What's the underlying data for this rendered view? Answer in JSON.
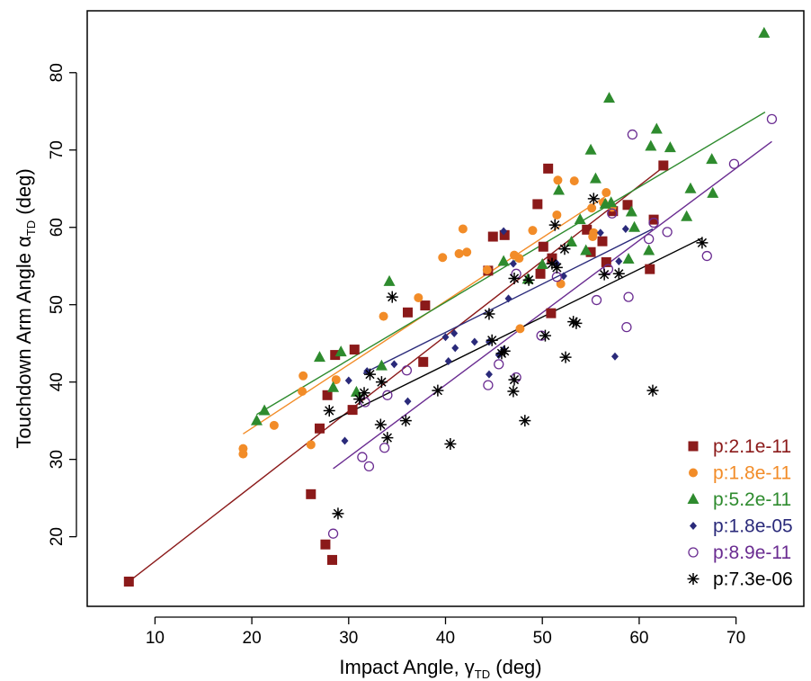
{
  "chart_data": {
    "type": "scatter",
    "title": "",
    "xlabel": {
      "main": "Impact Angle, ",
      "symbol": "γ",
      "sub": "TD",
      "unit": " (deg)"
    },
    "ylabel": {
      "main": "Touchdown Arm Angle  ",
      "symbol": "α",
      "sub": "TD",
      "unit": " (deg)"
    },
    "xlim": [
      3,
      77
    ],
    "ylim": [
      11,
      88
    ],
    "x_ticks": [
      10,
      20,
      30,
      40,
      50,
      60,
      70
    ],
    "y_ticks": [
      20,
      30,
      40,
      50,
      60,
      70,
      80
    ],
    "grid": false,
    "legend_position": "bottom-right",
    "series": [
      {
        "name": "p:2.1e-11",
        "color": "#8b1a1a",
        "marker": "square",
        "fit": [
          [
            7.3,
            14.2
          ],
          [
            62.5,
            67.8
          ]
        ],
        "points": [
          [
            7.3,
            14.2
          ],
          [
            26.1,
            25.5
          ],
          [
            27.0,
            34.0
          ],
          [
            27.6,
            19.0
          ],
          [
            27.8,
            38.3
          ],
          [
            28.3,
            17.0
          ],
          [
            28.6,
            43.5
          ],
          [
            30.4,
            36.4
          ],
          [
            30.6,
            44.2
          ],
          [
            36.1,
            49.0
          ],
          [
            37.7,
            42.6
          ],
          [
            37.9,
            49.9
          ],
          [
            44.4,
            54.4
          ],
          [
            44.9,
            58.8
          ],
          [
            46.1,
            59.0
          ],
          [
            49.5,
            63.0
          ],
          [
            49.8,
            54.0
          ],
          [
            50.1,
            57.5
          ],
          [
            50.6,
            67.6
          ],
          [
            50.9,
            48.9
          ],
          [
            51.0,
            56.0
          ],
          [
            54.6,
            59.7
          ],
          [
            55.0,
            56.8
          ],
          [
            56.2,
            58.2
          ],
          [
            56.6,
            55.5
          ],
          [
            57.3,
            62.1
          ],
          [
            58.8,
            62.9
          ],
          [
            61.1,
            54.6
          ],
          [
            61.5,
            61.0
          ],
          [
            62.5,
            68.0
          ]
        ]
      },
      {
        "name": "p:1.8e-11",
        "color": "#f28c28",
        "marker": "circle",
        "fit": [
          [
            19.1,
            33.3
          ],
          [
            57.0,
            64.4
          ]
        ],
        "points": [
          [
            19.1,
            31.4
          ],
          [
            19.1,
            30.7
          ],
          [
            22.3,
            34.4
          ],
          [
            25.2,
            38.8
          ],
          [
            25.3,
            40.8
          ],
          [
            26.1,
            31.9
          ],
          [
            28.7,
            40.3
          ],
          [
            33.6,
            48.5
          ],
          [
            37.2,
            50.9
          ],
          [
            39.7,
            56.1
          ],
          [
            41.4,
            56.6
          ],
          [
            41.8,
            59.8
          ],
          [
            42.2,
            56.8
          ],
          [
            44.3,
            54.5
          ],
          [
            47.1,
            56.4
          ],
          [
            47.6,
            56.0
          ],
          [
            47.7,
            46.9
          ],
          [
            49.0,
            59.6
          ],
          [
            51.5,
            61.6
          ],
          [
            51.6,
            66.1
          ],
          [
            51.9,
            52.7
          ],
          [
            53.3,
            66.0
          ],
          [
            55.1,
            62.5
          ],
          [
            55.2,
            58.8
          ],
          [
            55.3,
            59.3
          ],
          [
            56.3,
            63.2
          ],
          [
            56.6,
            64.5
          ],
          [
            57.2,
            62.6
          ]
        ]
      },
      {
        "name": "p:5.2e-11",
        "color": "#2e8b2e",
        "marker": "triangle",
        "fit": [
          [
            20.5,
            35.8
          ],
          [
            73.0,
            74.9
          ]
        ],
        "points": [
          [
            20.5,
            35.0
          ],
          [
            21.3,
            36.3
          ],
          [
            27.0,
            43.2
          ],
          [
            28.4,
            39.3
          ],
          [
            29.2,
            43.9
          ],
          [
            30.8,
            38.7
          ],
          [
            33.4,
            42.1
          ],
          [
            34.2,
            53.0
          ],
          [
            46.0,
            55.6
          ],
          [
            48.5,
            53.3
          ],
          [
            50.0,
            55.2
          ],
          [
            51.7,
            64.8
          ],
          [
            53.0,
            58.1
          ],
          [
            53.9,
            61.0
          ],
          [
            54.5,
            57.0
          ],
          [
            55.0,
            70.0
          ],
          [
            55.5,
            66.3
          ],
          [
            56.5,
            63.0
          ],
          [
            56.9,
            76.7
          ],
          [
            57.1,
            63.2
          ],
          [
            58.9,
            55.9
          ],
          [
            59.2,
            62.0
          ],
          [
            59.5,
            60.0
          ],
          [
            61.0,
            57.0
          ],
          [
            61.2,
            70.5
          ],
          [
            61.8,
            72.7
          ],
          [
            63.2,
            70.3
          ],
          [
            64.9,
            61.4
          ],
          [
            65.3,
            65.0
          ],
          [
            67.5,
            68.8
          ],
          [
            67.6,
            64.4
          ],
          [
            72.9,
            85.1
          ]
        ]
      },
      {
        "name": "p:1.8e-05",
        "color": "#2a2a7a",
        "marker": "diamond",
        "fit": [
          [
            31.5,
            41.1
          ],
          [
            61.4,
            59.8
          ]
        ],
        "points": [
          [
            29.6,
            32.4
          ],
          [
            30.0,
            40.2
          ],
          [
            31.9,
            41.4
          ],
          [
            34.7,
            42.3
          ],
          [
            36.1,
            37.5
          ],
          [
            40.0,
            45.8
          ],
          [
            40.3,
            42.7
          ],
          [
            40.9,
            46.3
          ],
          [
            41.0,
            44.4
          ],
          [
            43.0,
            45.2
          ],
          [
            44.5,
            45.2
          ],
          [
            44.5,
            41.0
          ],
          [
            45.5,
            43.5
          ],
          [
            46.0,
            44.2
          ],
          [
            46.0,
            59.5
          ],
          [
            46.5,
            50.8
          ],
          [
            47.0,
            55.3
          ],
          [
            51.5,
            55.3
          ],
          [
            52.2,
            53.7
          ],
          [
            56.0,
            59.3
          ],
          [
            57.5,
            43.3
          ],
          [
            57.9,
            55.6
          ],
          [
            58.6,
            59.8
          ]
        ]
      },
      {
        "name": "p:8.9e-11",
        "color": "#6a2c91",
        "marker": "circle-open",
        "fit": [
          [
            28.4,
            28.8
          ],
          [
            73.7,
            71.1
          ]
        ],
        "points": [
          [
            28.4,
            20.4
          ],
          [
            31.4,
            30.3
          ],
          [
            31.7,
            37.4
          ],
          [
            32.1,
            29.1
          ],
          [
            33.7,
            31.5
          ],
          [
            34.0,
            38.3
          ],
          [
            36.0,
            41.5
          ],
          [
            44.4,
            39.6
          ],
          [
            45.5,
            42.3
          ],
          [
            47.3,
            40.6
          ],
          [
            47.3,
            54.0
          ],
          [
            49.9,
            46.0
          ],
          [
            51.5,
            53.6
          ],
          [
            55.6,
            50.6
          ],
          [
            56.8,
            54.6
          ],
          [
            57.2,
            61.8
          ],
          [
            58.7,
            47.1
          ],
          [
            58.9,
            51.0
          ],
          [
            59.3,
            72.0
          ],
          [
            61.0,
            58.5
          ],
          [
            61.5,
            60.6
          ],
          [
            62.9,
            59.4
          ],
          [
            67.0,
            56.3
          ],
          [
            69.8,
            68.2
          ],
          [
            73.7,
            74.0
          ]
        ]
      },
      {
        "name": "p:7.3e-06",
        "color": "#000000",
        "marker": "asterisk",
        "fit": [
          [
            28.0,
            34.8
          ],
          [
            66.5,
            58.6
          ]
        ],
        "points": [
          [
            28.0,
            36.3
          ],
          [
            28.9,
            23.0
          ],
          [
            31.1,
            37.8
          ],
          [
            31.6,
            38.6
          ],
          [
            32.2,
            41.0
          ],
          [
            33.3,
            34.5
          ],
          [
            33.4,
            40.0
          ],
          [
            34.0,
            32.8
          ],
          [
            34.5,
            51.0
          ],
          [
            35.9,
            35.0
          ],
          [
            39.2,
            38.9
          ],
          [
            40.5,
            32.0
          ],
          [
            44.5,
            48.8
          ],
          [
            44.8,
            45.4
          ],
          [
            45.8,
            43.7
          ],
          [
            46.1,
            44.0
          ],
          [
            47.0,
            38.8
          ],
          [
            47.1,
            40.3
          ],
          [
            47.1,
            53.4
          ],
          [
            48.2,
            35.0
          ],
          [
            48.6,
            53.2
          ],
          [
            50.3,
            46.0
          ],
          [
            51.0,
            55.3
          ],
          [
            51.3,
            60.3
          ],
          [
            51.5,
            54.8
          ],
          [
            52.3,
            57.2
          ],
          [
            52.4,
            43.2
          ],
          [
            53.2,
            47.8
          ],
          [
            53.5,
            47.6
          ],
          [
            55.3,
            63.7
          ],
          [
            56.4,
            53.9
          ],
          [
            57.9,
            54.0
          ],
          [
            61.4,
            38.9
          ],
          [
            66.5,
            58.0
          ]
        ]
      }
    ]
  }
}
